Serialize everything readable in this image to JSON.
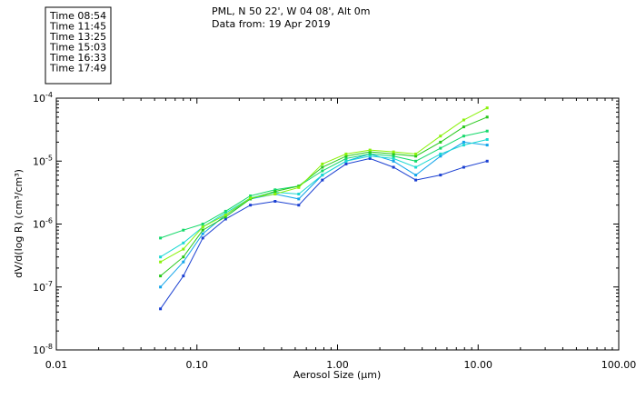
{
  "chart_data": {
    "type": "line",
    "title": "PML, N 50 22', W 04 08', Alt 0m",
    "subtitle": "Data from: 19 Apr 2019",
    "xlabel": "Aerosol Size (μm)",
    "ylabel": "dV/d(log R) (cm³/cm³)",
    "x_scale": "log",
    "y_scale": "log",
    "xlim": [
      0.01,
      100
    ],
    "ylim": [
      1e-08,
      0.0001
    ],
    "x_ticks": [
      0.01,
      0.1,
      1,
      10,
      100
    ],
    "x_tick_labels": [
      "0.01",
      "0.10",
      "1.00",
      "10.00",
      "100.00"
    ],
    "y_ticks": [
      1e-08,
      1e-07,
      1e-06,
      1e-05,
      0.0001
    ],
    "y_tick_base": "10",
    "y_tick_exponents": [
      "-8",
      "-7",
      "-6",
      "-5",
      "-4"
    ],
    "legend_position": "top-left",
    "x": [
      0.055,
      0.08,
      0.11,
      0.16,
      0.24,
      0.36,
      0.53,
      0.78,
      1.15,
      1.7,
      2.5,
      3.6,
      5.4,
      7.9,
      11.6
    ],
    "series": [
      {
        "name": "Time 08:54",
        "color": "#1a3fd1",
        "values": [
          4.5e-08,
          1.5e-07,
          6e-07,
          1.2e-06,
          2e-06,
          2.3e-06,
          2e-06,
          5e-06,
          9e-06,
          1.1e-05,
          8e-06,
          5e-06,
          6e-06,
          8e-06,
          1e-05
        ]
      },
      {
        "name": "Time 11:45",
        "color": "#12a4ea",
        "values": [
          1e-07,
          2.5e-07,
          7e-07,
          1.4e-06,
          2.5e-06,
          3e-06,
          2.5e-06,
          6e-06,
          1e-05,
          1.3e-05,
          1e-05,
          6e-06,
          1.2e-05,
          2e-05,
          1.8e-05
        ]
      },
      {
        "name": "Time 13:25",
        "color": "#19d8d2",
        "values": [
          3e-07,
          5e-07,
          9e-07,
          1.5e-06,
          2.6e-06,
          3.2e-06,
          3e-06,
          6e-06,
          1e-05,
          1.2e-05,
          1.1e-05,
          8e-06,
          1.3e-05,
          1.8e-05,
          2.2e-05
        ]
      },
      {
        "name": "Time 15:03",
        "color": "#14d96a",
        "values": [
          6e-07,
          8e-07,
          1e-06,
          1.6e-06,
          2.8e-06,
          3.5e-06,
          4e-06,
          7e-06,
          1.1e-05,
          1.3e-05,
          1.2e-05,
          1e-05,
          1.6e-05,
          2.5e-05,
          3e-05
        ]
      },
      {
        "name": "Time 16:33",
        "color": "#26c81a",
        "values": [
          1.5e-07,
          3e-07,
          8e-07,
          1.3e-06,
          2.5e-06,
          3.3e-06,
          4e-06,
          8e-06,
          1.2e-05,
          1.4e-05,
          1.3e-05,
          1.2e-05,
          2e-05,
          3.5e-05,
          5e-05
        ]
      },
      {
        "name": "Time 17:49",
        "color": "#8af20a",
        "values": [
          2.5e-07,
          4e-07,
          9e-07,
          1.4e-06,
          2.6e-06,
          3e-06,
          3.8e-06,
          9e-06,
          1.3e-05,
          1.5e-05,
          1.4e-05,
          1.3e-05,
          2.5e-05,
          4.5e-05,
          7e-05
        ]
      }
    ]
  }
}
